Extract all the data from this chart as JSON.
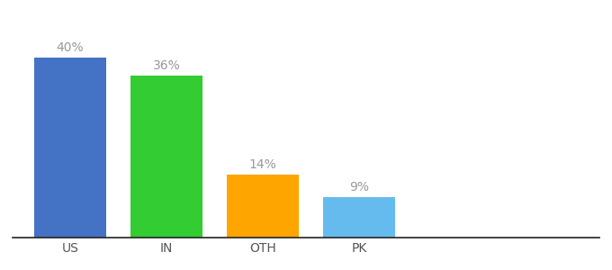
{
  "categories": [
    "US",
    "IN",
    "OTH",
    "PK"
  ],
  "values": [
    40,
    36,
    14,
    9
  ],
  "bar_colors": [
    "#4472C4",
    "#33CC33",
    "#FFA500",
    "#66BBEE"
  ],
  "labels": [
    "40%",
    "36%",
    "14%",
    "9%"
  ],
  "ylim": [
    0,
    48
  ],
  "background_color": "#ffffff",
  "label_fontsize": 10,
  "tick_fontsize": 10,
  "bar_width": 0.75,
  "label_color": "#999999",
  "tick_color": "#555555"
}
